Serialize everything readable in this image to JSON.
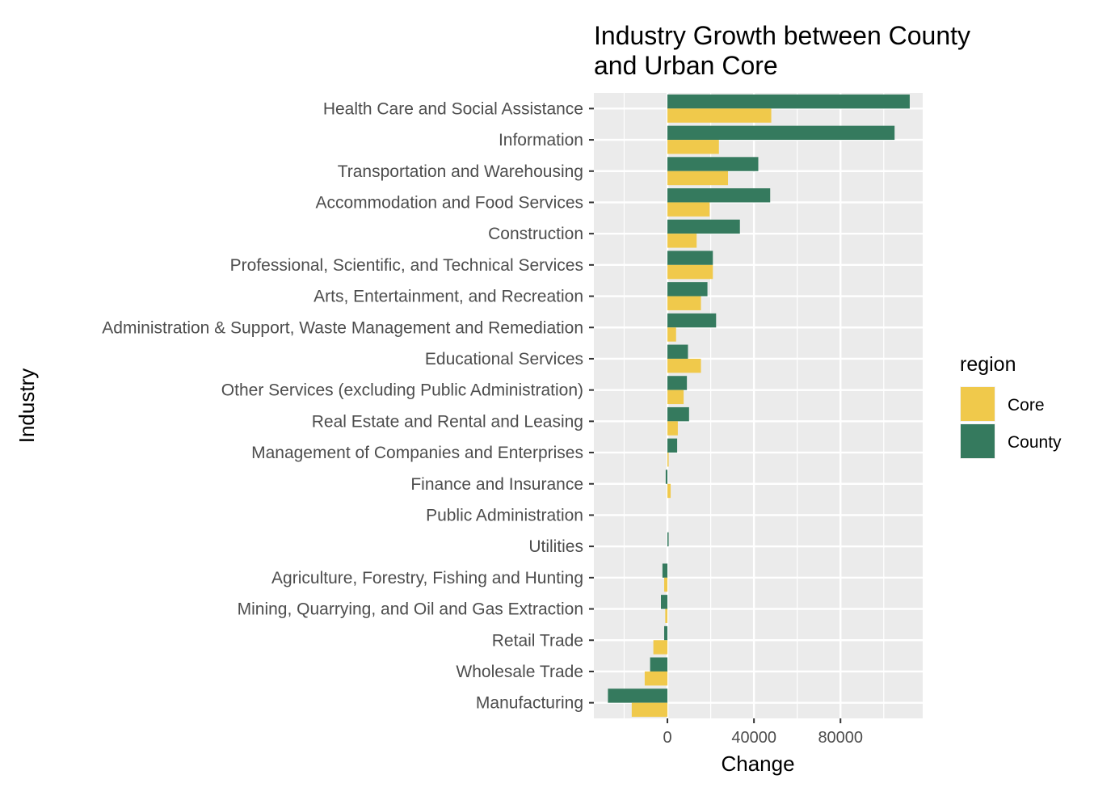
{
  "chart_data": {
    "type": "bar",
    "orientation": "horizontal",
    "position": "dodge",
    "title_lines": [
      "Industry Growth between County",
      "and Urban Core"
    ],
    "xlabel": "Change",
    "ylabel": "Industry",
    "xlim": [
      -34000,
      118000
    ],
    "x_ticks": [
      0,
      40000,
      80000
    ],
    "x_tick_labels": [
      "0",
      "40000",
      "80000"
    ],
    "grid": true,
    "legend": {
      "title": "region",
      "placement": "right"
    },
    "categories": [
      "Health Care and Social Assistance",
      "Information",
      "Transportation and Warehousing",
      "Accommodation and Food Services",
      "Construction",
      "Professional, Scientific, and Technical Services",
      "Arts, Entertainment, and Recreation",
      "Administration & Support, Waste Management and Remediation",
      "Educational Services",
      "Other Services (excluding Public Administration)",
      "Real Estate and Rental and Leasing",
      "Management of Companies and Enterprises",
      "Finance and Insurance",
      "Public Administration",
      "Utilities",
      "Agriculture, Forestry, Fishing and Hunting",
      "Mining, Quarrying, and Oil and Gas Extraction",
      "Retail Trade",
      "Wholesale Trade",
      "Manufacturing"
    ],
    "series": [
      {
        "name": "County",
        "color": "#357a5e",
        "values": [
          112000,
          105000,
          42000,
          47500,
          33500,
          21000,
          18500,
          22500,
          9500,
          9000,
          10000,
          4500,
          -800,
          0,
          300,
          -2300,
          -3000,
          -1500,
          -8000,
          -27500
        ]
      },
      {
        "name": "Core",
        "color": "#f0c94b",
        "values": [
          48000,
          23800,
          28000,
          19500,
          13500,
          21000,
          15500,
          4000,
          15500,
          7500,
          4800,
          400,
          1500,
          0,
          0,
          -1500,
          -1000,
          -6500,
          -10500,
          -16500
        ]
      }
    ]
  },
  "colors": {
    "panel_background": "#ebebeb",
    "grid": "#ffffff",
    "text_muted": "#4d4d4d"
  }
}
